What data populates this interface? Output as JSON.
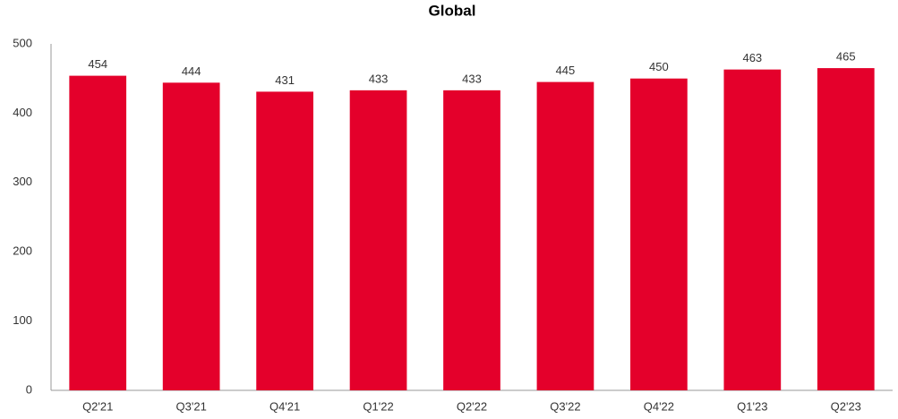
{
  "chart_data": {
    "type": "bar",
    "title": "Global",
    "categories": [
      "Q2'21",
      "Q3'21",
      "Q4'21",
      "Q1'22",
      "Q2'22",
      "Q3'22",
      "Q4'22",
      "Q1'23",
      "Q2'23"
    ],
    "values": [
      454,
      444,
      431,
      433,
      433,
      445,
      450,
      463,
      465
    ],
    "color": "#e4002b",
    "ylim": [
      0,
      500
    ],
    "yticks": [
      0,
      100,
      200,
      300,
      400,
      500
    ],
    "grid": false
  }
}
